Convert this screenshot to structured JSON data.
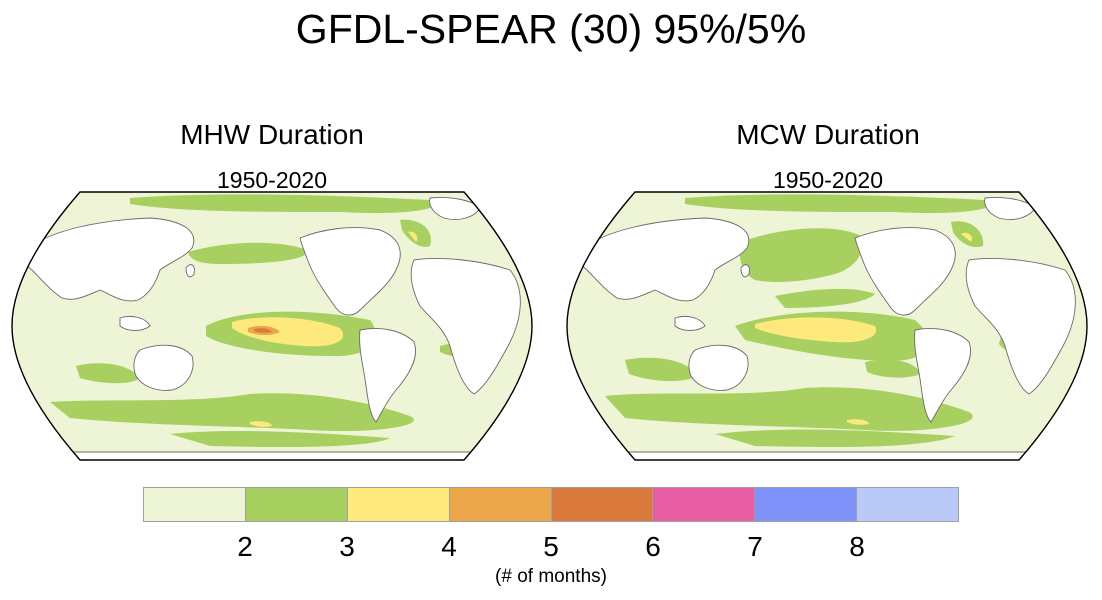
{
  "title": "GFDL-SPEAR (30) 95%/5%",
  "panels": [
    {
      "title": "MHW Duration",
      "subtitle": "1950-2020"
    },
    {
      "title": "MCW Duration",
      "subtitle": "1950-2020"
    }
  ],
  "colorbar": {
    "colors": [
      "#eef4d6",
      "#a8d061",
      "#fde97c",
      "#eca64a",
      "#d97a3c",
      "#e85ea4",
      "#8093fb",
      "#b9caf8"
    ],
    "tick_labels": [
      "2",
      "3",
      "4",
      "5",
      "6",
      "7",
      "8"
    ],
    "unit": "(# of months)"
  }
}
